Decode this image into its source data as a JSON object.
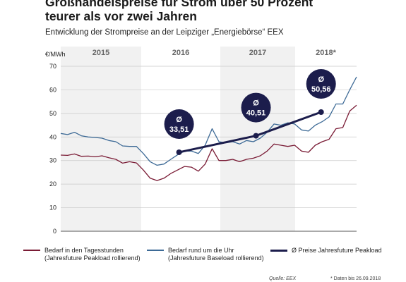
{
  "header": {
    "title_line1": "Großhandelspreise für Strom über 50 Prozent",
    "title_line2": "teurer als vor zwei Jahren",
    "subtitle": "Entwicklung der Strompreise an der Leipziger „Energiebörse“ EEX"
  },
  "chart_data": {
    "type": "line",
    "ylabel": "€/MWh",
    "ylim": [
      0,
      70
    ],
    "yticks": [
      0,
      10,
      20,
      30,
      40,
      50,
      60,
      70
    ],
    "grid": true,
    "year_labels": [
      "2015",
      "2016",
      "2017",
      "2018*"
    ],
    "series": [
      {
        "name": "Bedarf in den Tagesstunden (Jahresfuture Peakload rollierend)",
        "color": "#7a1b35",
        "values": [
          32.3,
          32.2,
          32.8,
          31.8,
          31.9,
          31.6,
          32.0,
          31.2,
          30.5,
          28.9,
          29.5,
          29.0,
          26.0,
          22.5,
          21.5,
          22.5,
          24.5,
          26.0,
          27.5,
          27.2,
          25.5,
          28.5,
          35.0,
          30.0,
          30.0,
          30.5,
          29.5,
          30.5,
          31.0,
          32.0,
          34.0,
          37.0,
          36.5,
          36.0,
          36.5,
          34.0,
          33.5,
          36.5,
          38.0,
          39.0,
          43.5,
          44.0,
          51.0,
          53.5
        ]
      },
      {
        "name": "Bedarf rund um die Uhr (Jahresfuture Baseload rollierend)",
        "color": "#3d6a96",
        "values": [
          41.5,
          41.0,
          42.0,
          40.5,
          40.0,
          39.8,
          39.5,
          38.5,
          38.0,
          36.2,
          36.0,
          36.0,
          33.0,
          29.5,
          28.0,
          28.5,
          30.5,
          32.5,
          34.0,
          34.0,
          33.0,
          36.5,
          43.5,
          38.0,
          37.5,
          38.0,
          37.0,
          38.5,
          38.0,
          39.5,
          42.0,
          45.5,
          45.0,
          46.0,
          45.5,
          43.0,
          42.5,
          45.0,
          46.5,
          48.5,
          54.0,
          54.0,
          60.0,
          65.5
        ]
      },
      {
        "name": "Ø Preise Jahresfuture Peakload",
        "color": "#1c1d4c",
        "averages": [
          {
            "year": "2016",
            "value": 33.51,
            "label": "Ø",
            "text": "33,51"
          },
          {
            "year": "2017",
            "value": 40.51,
            "label": "Ø",
            "text": "40,51"
          },
          {
            "year": "2018*",
            "value": 50.56,
            "label": "Ø",
            "text": "50,56"
          }
        ]
      }
    ]
  },
  "legend": {
    "peak_line1": "Bedarf in den Tagesstunden",
    "peak_line2": "(Jahresfuture Peakload rollierend)",
    "base_line1": "Bedarf rund um die Uhr",
    "base_line2": "(Jahresfuture Baseload rollierend)",
    "avg_line1": "Ø Preise Jahresfuture Peakload"
  },
  "footer": {
    "source": "Quelle: EEX",
    "note": "* Daten bis 26.09.2018"
  }
}
